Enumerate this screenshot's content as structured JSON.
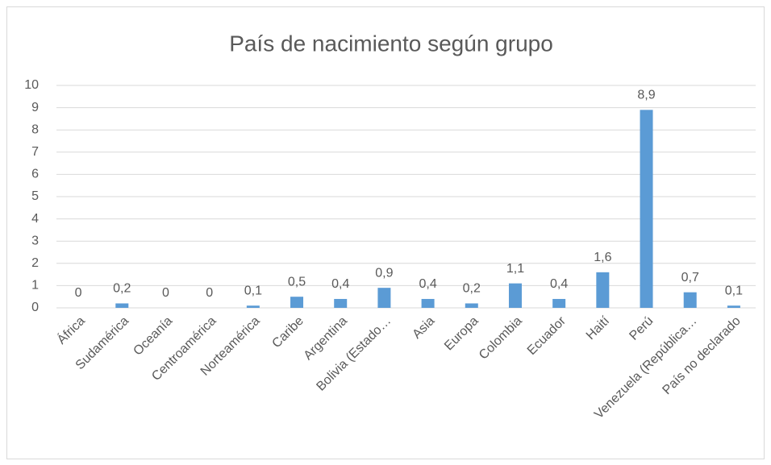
{
  "chart_data": {
    "type": "bar",
    "title": "País de nacimiento según grupo",
    "categories": [
      "África",
      "Sudamérica",
      "Oceanía",
      "Centroamérica",
      "Norteamérica",
      "Caribe",
      "Argentina",
      "Bolivia (Estado…",
      "Asia",
      "Europa",
      "Colombia",
      "Ecuador",
      "Haití",
      "Perú",
      "Venezuela (República…",
      "País no declarado"
    ],
    "values": [
      0,
      0.2,
      0,
      0,
      0.1,
      0.5,
      0.4,
      0.9,
      0.4,
      0.2,
      1.1,
      0.4,
      1.6,
      8.9,
      0.7,
      0.1
    ],
    "value_labels": [
      "0",
      "0,2",
      "0",
      "0",
      "0,1",
      "0,5",
      "0,4",
      "0,9",
      "0,4",
      "0,2",
      "1,1",
      "0,4",
      "1,6",
      "8,9",
      "0,7",
      "0,1"
    ],
    "color": "#5b9bd5",
    "ylim": [
      0,
      10
    ],
    "yticks": [
      0,
      1,
      2,
      3,
      4,
      5,
      6,
      7,
      8,
      9,
      10
    ],
    "grid": true
  }
}
